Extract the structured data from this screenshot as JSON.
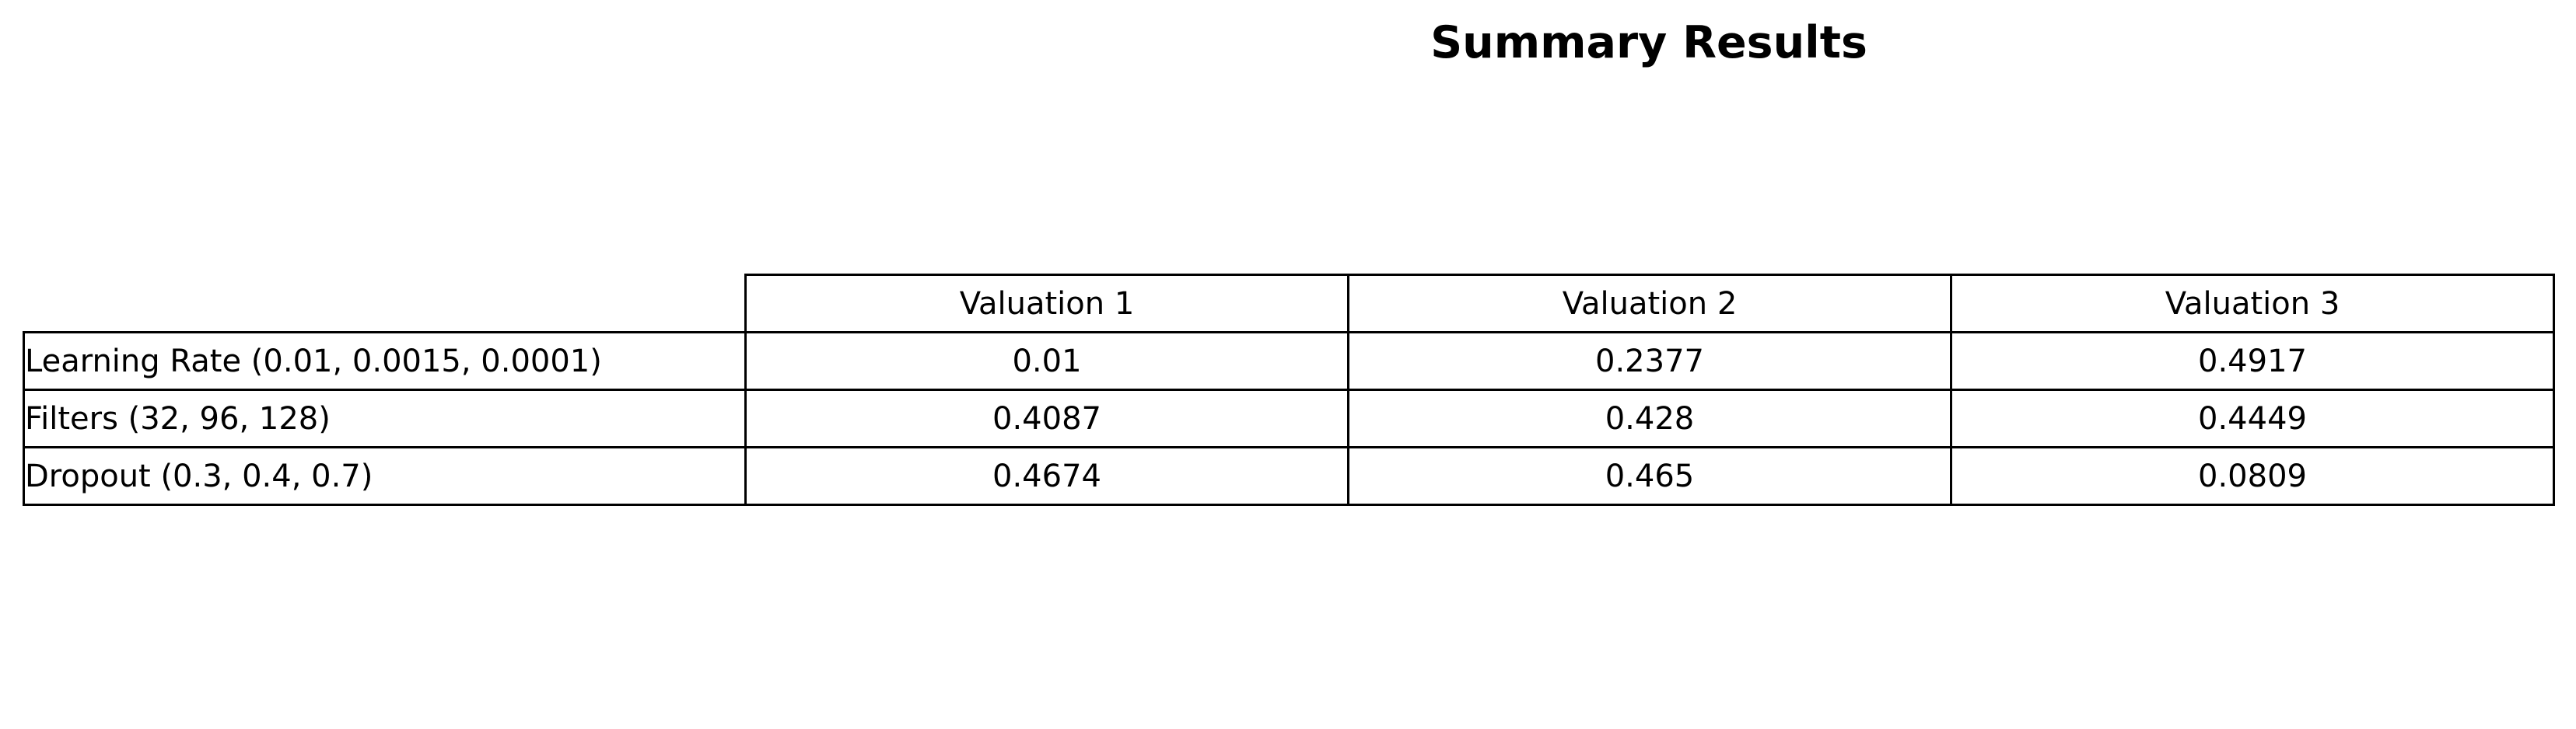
{
  "chart_data": {
    "type": "table",
    "title": "Summary Results",
    "columns": [
      "Valuation 1",
      "Valuation 2",
      "Valuation 3"
    ],
    "rows": [
      {
        "label": "Learning Rate (0.01, 0.0015, 0.0001)",
        "values": [
          "0.01",
          "0.2377",
          "0.4917"
        ]
      },
      {
        "label": "Filters (32, 96, 128)",
        "values": [
          "0.4087",
          "0.428",
          "0.4449"
        ]
      },
      {
        "label": "Dropout (0.3, 0.4, 0.7)",
        "values": [
          "0.4674",
          "0.465",
          "0.0809"
        ]
      }
    ]
  }
}
